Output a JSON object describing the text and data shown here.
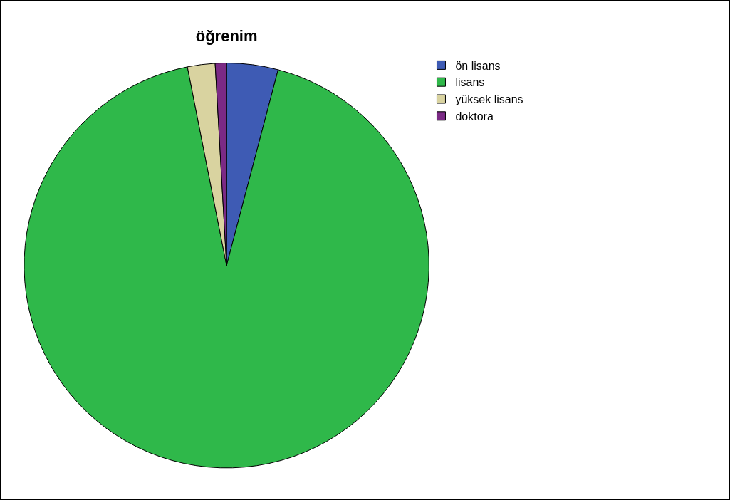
{
  "chart_data": {
    "type": "pie",
    "title": "öğrenim",
    "categories": [
      "ön lisans",
      "lisans",
      "yüksek lisans",
      "doktora"
    ],
    "values": [
      4.1,
      92.8,
      2.2,
      0.9
    ],
    "colors": [
      "#3e5bb4",
      "#2fb84a",
      "#d9d3a0",
      "#7b2a85"
    ],
    "legend": "top right"
  }
}
